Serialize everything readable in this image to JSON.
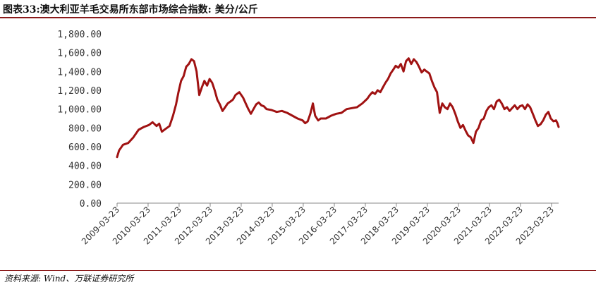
{
  "header": {
    "title": "图表33:澳大利亚羊毛交易所东部市场综合指数: 美分/公斤"
  },
  "footer": {
    "source": "资料来源: Wind、万联证券研究所"
  },
  "colors": {
    "series": "#a01212",
    "rules": "#8b1a1a",
    "axis": "#888888"
  },
  "chart_data": {
    "type": "line",
    "title": "",
    "xlabel": "",
    "ylabel": "",
    "ylim": [
      0,
      1800
    ],
    "xlim": [
      "2009-03-23",
      "2023-06-15"
    ],
    "y_ticks": [
      "0.00",
      "200.00",
      "400.00",
      "600.00",
      "800.00",
      "1,000.00",
      "1,200.00",
      "1,400.00",
      "1,600.00",
      "1,800.00"
    ],
    "x_ticks": [
      "2009-03-23",
      "2010-03-23",
      "2011-03-23",
      "2012-03-23",
      "2013-03-23",
      "2014-03-23",
      "2015-03-23",
      "2016-03-23",
      "2017-03-23",
      "2018-03-23",
      "2019-03-23",
      "2020-03-23",
      "2021-03-23",
      "2022-03-23",
      "2023-03-23"
    ],
    "grid": false,
    "legend": "none",
    "series": [
      {
        "values": [
          [
            "2009-03-23",
            490
          ],
          [
            "2009-04-15",
            560
          ],
          [
            "2009-06-01",
            620
          ],
          [
            "2009-08-01",
            640
          ],
          [
            "2009-10-01",
            700
          ],
          [
            "2009-12-01",
            780
          ],
          [
            "2010-02-01",
            810
          ],
          [
            "2010-04-01",
            830
          ],
          [
            "2010-05-15",
            860
          ],
          [
            "2010-07-01",
            820
          ],
          [
            "2010-08-01",
            845
          ],
          [
            "2010-09-01",
            760
          ],
          [
            "2010-10-15",
            790
          ],
          [
            "2010-12-01",
            820
          ],
          [
            "2011-01-10",
            930
          ],
          [
            "2011-02-15",
            1050
          ],
          [
            "2011-03-15",
            1180
          ],
          [
            "2011-04-15",
            1300
          ],
          [
            "2011-05-15",
            1350
          ],
          [
            "2011-06-15",
            1450
          ],
          [
            "2011-07-15",
            1480
          ],
          [
            "2011-08-15",
            1530
          ],
          [
            "2011-09-15",
            1510
          ],
          [
            "2011-10-15",
            1400
          ],
          [
            "2011-11-15",
            1150
          ],
          [
            "2011-12-15",
            1230
          ],
          [
            "2012-01-15",
            1300
          ],
          [
            "2012-02-15",
            1250
          ],
          [
            "2012-03-15",
            1320
          ],
          [
            "2012-04-15",
            1280
          ],
          [
            "2012-05-15",
            1200
          ],
          [
            "2012-06-15",
            1100
          ],
          [
            "2012-07-15",
            1050
          ],
          [
            "2012-08-15",
            980
          ],
          [
            "2012-09-15",
            1020
          ],
          [
            "2012-10-15",
            1060
          ],
          [
            "2012-11-15",
            1080
          ],
          [
            "2012-12-15",
            1100
          ],
          [
            "2013-01-15",
            1150
          ],
          [
            "2013-03-01",
            1180
          ],
          [
            "2013-04-15",
            1120
          ],
          [
            "2013-05-15",
            1060
          ],
          [
            "2013-06-15",
            1000
          ],
          [
            "2013-07-15",
            950
          ],
          [
            "2013-08-15",
            1000
          ],
          [
            "2013-09-15",
            1050
          ],
          [
            "2013-10-15",
            1070
          ],
          [
            "2013-11-15",
            1040
          ],
          [
            "2013-12-15",
            1030
          ],
          [
            "2014-01-15",
            1000
          ],
          [
            "2014-03-15",
            990
          ],
          [
            "2014-05-15",
            970
          ],
          [
            "2014-07-15",
            980
          ],
          [
            "2014-09-15",
            960
          ],
          [
            "2014-11-15",
            930
          ],
          [
            "2015-01-15",
            900
          ],
          [
            "2015-03-15",
            880
          ],
          [
            "2015-04-15",
            850
          ],
          [
            "2015-05-15",
            870
          ],
          [
            "2015-06-15",
            950
          ],
          [
            "2015-07-15",
            1060
          ],
          [
            "2015-08-10",
            930
          ],
          [
            "2015-09-15",
            880
          ],
          [
            "2015-10-15",
            900
          ],
          [
            "2015-12-15",
            900
          ],
          [
            "2016-02-15",
            930
          ],
          [
            "2016-04-15",
            950
          ],
          [
            "2016-06-15",
            960
          ],
          [
            "2016-08-15",
            1000
          ],
          [
            "2016-10-15",
            1010
          ],
          [
            "2016-12-15",
            1020
          ],
          [
            "2017-02-15",
            1060
          ],
          [
            "2017-04-15",
            1110
          ],
          [
            "2017-05-15",
            1150
          ],
          [
            "2017-06-15",
            1180
          ],
          [
            "2017-07-15",
            1160
          ],
          [
            "2017-08-15",
            1200
          ],
          [
            "2017-09-15",
            1180
          ],
          [
            "2017-10-15",
            1230
          ],
          [
            "2017-11-15",
            1280
          ],
          [
            "2017-12-15",
            1320
          ],
          [
            "2018-01-15",
            1380
          ],
          [
            "2018-02-15",
            1420
          ],
          [
            "2018-03-15",
            1460
          ],
          [
            "2018-04-15",
            1440
          ],
          [
            "2018-05-15",
            1480
          ],
          [
            "2018-06-15",
            1400
          ],
          [
            "2018-07-15",
            1510
          ],
          [
            "2018-08-15",
            1540
          ],
          [
            "2018-09-15",
            1480
          ],
          [
            "2018-10-15",
            1530
          ],
          [
            "2018-11-15",
            1500
          ],
          [
            "2018-12-15",
            1450
          ],
          [
            "2019-01-15",
            1390
          ],
          [
            "2019-02-15",
            1420
          ],
          [
            "2019-03-15",
            1400
          ],
          [
            "2019-04-15",
            1380
          ],
          [
            "2019-05-15",
            1300
          ],
          [
            "2019-06-15",
            1230
          ],
          [
            "2019-07-15",
            1180
          ],
          [
            "2019-08-15",
            960
          ],
          [
            "2019-09-15",
            1060
          ],
          [
            "2019-10-15",
            1020
          ],
          [
            "2019-11-15",
            1000
          ],
          [
            "2019-12-15",
            1060
          ],
          [
            "2020-01-15",
            1020
          ],
          [
            "2020-02-15",
            950
          ],
          [
            "2020-03-15",
            870
          ],
          [
            "2020-04-15",
            800
          ],
          [
            "2020-05-15",
            830
          ],
          [
            "2020-06-15",
            770
          ],
          [
            "2020-07-15",
            720
          ],
          [
            "2020-08-15",
            700
          ],
          [
            "2020-09-15",
            640
          ],
          [
            "2020-10-15",
            760
          ],
          [
            "2020-11-15",
            800
          ],
          [
            "2020-12-15",
            880
          ],
          [
            "2021-01-15",
            900
          ],
          [
            "2021-02-15",
            980
          ],
          [
            "2021-03-15",
            1020
          ],
          [
            "2021-04-15",
            1040
          ],
          [
            "2021-05-15",
            1000
          ],
          [
            "2021-06-15",
            1080
          ],
          [
            "2021-07-15",
            1100
          ],
          [
            "2021-08-15",
            1060
          ],
          [
            "2021-09-15",
            1000
          ],
          [
            "2021-10-15",
            1020
          ],
          [
            "2021-11-15",
            980
          ],
          [
            "2021-12-15",
            1010
          ],
          [
            "2022-01-15",
            1040
          ],
          [
            "2022-02-15",
            1000
          ],
          [
            "2022-03-15",
            1030
          ],
          [
            "2022-04-15",
            1040
          ],
          [
            "2022-05-15",
            1000
          ],
          [
            "2022-06-15",
            1050
          ],
          [
            "2022-07-15",
            1020
          ],
          [
            "2022-08-15",
            950
          ],
          [
            "2022-09-15",
            880
          ],
          [
            "2022-10-15",
            820
          ],
          [
            "2022-11-15",
            840
          ],
          [
            "2022-12-15",
            880
          ],
          [
            "2023-01-15",
            940
          ],
          [
            "2023-02-15",
            970
          ],
          [
            "2023-03-15",
            900
          ],
          [
            "2023-04-15",
            870
          ],
          [
            "2023-05-15",
            880
          ],
          [
            "2023-06-01",
            850
          ],
          [
            "2023-06-15",
            810
          ]
        ]
      }
    ]
  }
}
